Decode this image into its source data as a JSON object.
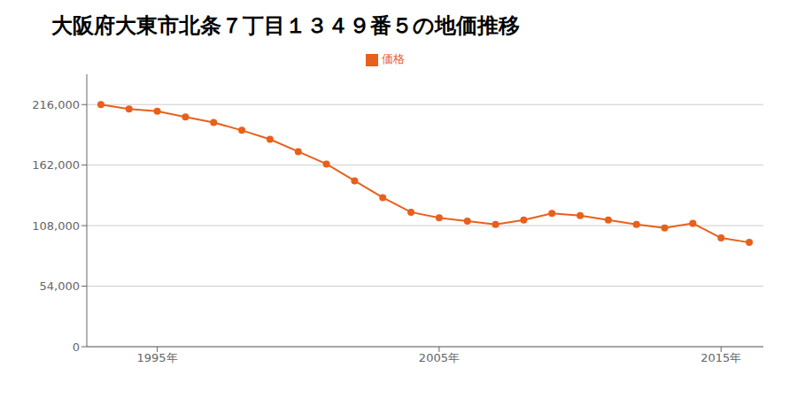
{
  "chart_data": {
    "type": "line",
    "title": "大阪府大東市北条７丁目１３４９番５の地価推移",
    "x": [
      1993,
      1994,
      1995,
      1996,
      1997,
      1998,
      1999,
      2000,
      2001,
      2002,
      2003,
      2004,
      2005,
      2006,
      2007,
      2008,
      2009,
      2010,
      2011,
      2012,
      2013,
      2014,
      2015,
      2016
    ],
    "series": [
      {
        "name": "価格",
        "color": "#e8601c",
        "marker": "circle",
        "values": [
          216000,
          212000,
          210000,
          205000,
          200000,
          193000,
          185000,
          174000,
          163000,
          148000,
          133000,
          120000,
          115000,
          112000,
          109000,
          113000,
          119000,
          117000,
          113000,
          109000,
          106000,
          110000,
          97000,
          93000
        ]
      }
    ],
    "xlim": [
      1992.5,
      2016.5
    ],
    "xticks": [
      {
        "value": 1995,
        "label": "1995年"
      },
      {
        "value": 2005,
        "label": "2005年"
      },
      {
        "value": 2015,
        "label": "2015年"
      }
    ],
    "ylim": [
      0,
      243000
    ],
    "yticks": [
      0,
      {
        "value": 54000,
        "label": "54,000"
      },
      {
        "value": 108000,
        "label": "108,000"
      },
      {
        "value": 162000,
        "label": "162,000"
      },
      {
        "value": 216000,
        "label": "216,000"
      }
    ],
    "grid": true,
    "legend": "top"
  }
}
